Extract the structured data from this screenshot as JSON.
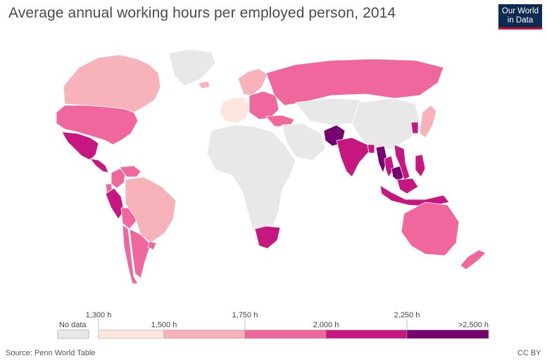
{
  "header": {
    "title": "Average annual working hours per employed person, 2014",
    "logo_line1": "Our World",
    "logo_line2": "in Data"
  },
  "footer": {
    "source": "Source: Penn World Table",
    "license": "CC BY"
  },
  "legend": {
    "no_data_label": "No data",
    "no_data_color": "#e8e8e8",
    "tick_labels": [
      "1,300 h",
      "1,500 h",
      "1,750 h",
      "2,000 h",
      "2,250 h",
      ">2,500 h"
    ],
    "colors": [
      "#fde6e0",
      "#f7b3b9",
      "#f0679d",
      "#c5177f",
      "#770071"
    ]
  },
  "map_regions": [
    {
      "name": "Canada",
      "bin": 1
    },
    {
      "name": "United States",
      "bin": 2
    },
    {
      "name": "Mexico",
      "bin": 3
    },
    {
      "name": "Central America",
      "bin": 3
    },
    {
      "name": "Colombia",
      "bin": 2
    },
    {
      "name": "Venezuela",
      "bin": 2
    },
    {
      "name": "Ecuador",
      "bin": 2
    },
    {
      "name": "Peru",
      "bin": 3
    },
    {
      "name": "Bolivia",
      "bin": 2
    },
    {
      "name": "Brazil",
      "bin": 1
    },
    {
      "name": "Chile",
      "bin": 2
    },
    {
      "name": "Argentina",
      "bin": 2
    },
    {
      "name": "Uruguay",
      "bin": 2
    },
    {
      "name": "Greenland",
      "bin": -1
    },
    {
      "name": "Iceland",
      "bin": 1
    },
    {
      "name": "Western Europe",
      "bin": 0
    },
    {
      "name": "Scandinavia",
      "bin": 1
    },
    {
      "name": "Eastern Europe",
      "bin": 2
    },
    {
      "name": "Russia",
      "bin": 2
    },
    {
      "name": "Turkey",
      "bin": 2
    },
    {
      "name": "Africa",
      "bin": -1
    },
    {
      "name": "South Africa",
      "bin": 3
    },
    {
      "name": "Middle East",
      "bin": -1
    },
    {
      "name": "Central Asia",
      "bin": -1
    },
    {
      "name": "China",
      "bin": -1
    },
    {
      "name": "Pakistan",
      "bin": 4
    },
    {
      "name": "India",
      "bin": 3
    },
    {
      "name": "Bangladesh",
      "bin": 3
    },
    {
      "name": "Myanmar",
      "bin": 4
    },
    {
      "name": "Thailand",
      "bin": 3
    },
    {
      "name": "Cambodia",
      "bin": 4
    },
    {
      "name": "Vietnam",
      "bin": 3
    },
    {
      "name": "Malaysia",
      "bin": 3
    },
    {
      "name": "Indonesia",
      "bin": 3
    },
    {
      "name": "Philippines",
      "bin": 3
    },
    {
      "name": "South Korea",
      "bin": 3
    },
    {
      "name": "Japan",
      "bin": 1
    },
    {
      "name": "Australia",
      "bin": 2
    },
    {
      "name": "New Zealand",
      "bin": 2
    }
  ]
}
